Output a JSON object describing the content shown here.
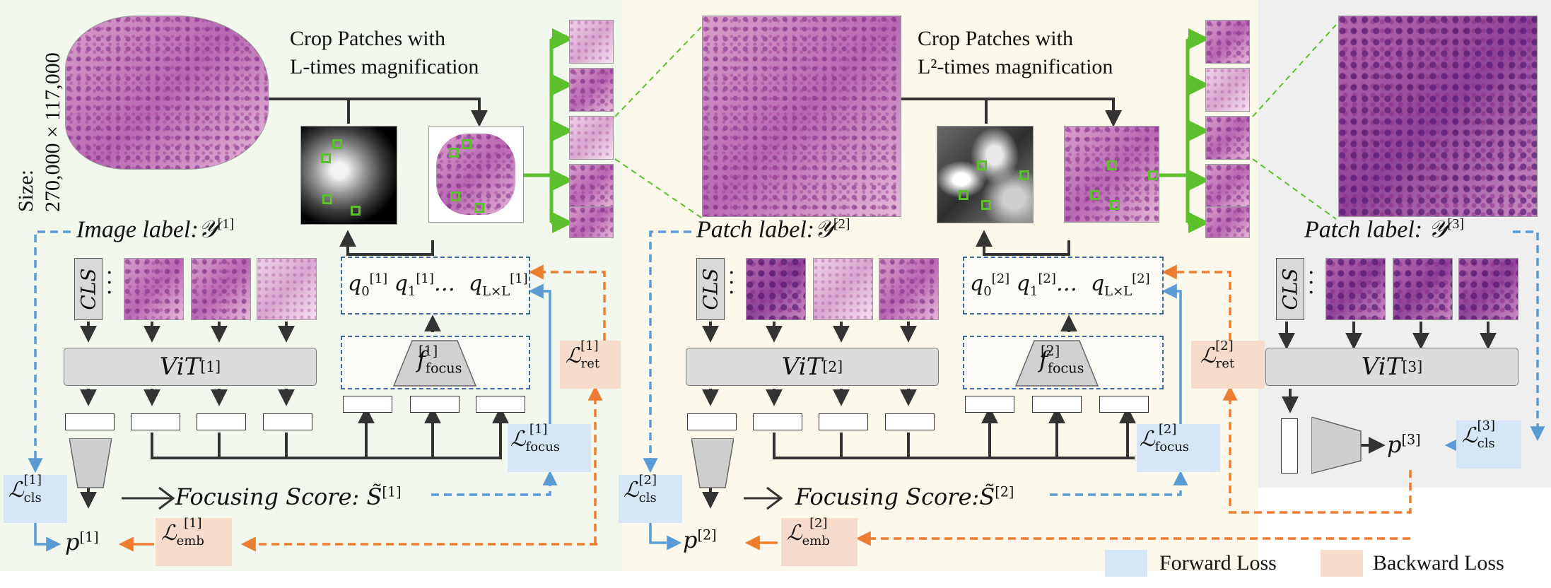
{
  "colors": {
    "forward_loss_bg": "#d6e6f6",
    "backward_loss_bg": "#f7dccb",
    "forward_arrow": "#5b9bd5",
    "backward_arrow": "#ed7d31",
    "green_arrow": "#5cc02c",
    "stage1_bg": "#f3f8ee",
    "stage2_bg": "#fdf8ec",
    "stage3_bg": "#efefef"
  },
  "stage1": {
    "size_label": "Size:",
    "size_value": "270,000 × 117,000",
    "crop_line1": "Crop Patches with",
    "crop_line2": "L-times magnification",
    "image_label": "Image label:𝒴",
    "image_label_sup": "[1]",
    "vit": "ViT",
    "vit_sup": "[1]",
    "cls": "CLS",
    "q_tokens": "q₀⁽¹⁾ q₁⁽¹⁾… q_{L×L}⁽¹⁾",
    "focus_fn": "f",
    "focus_fn_sub": "focus",
    "focus_fn_sup": "[1]",
    "focusing_score": "Focusing Score: S̃",
    "focusing_score_sup": "[1]",
    "loss_cls": "ℒ",
    "loss_cls_sub": "cls",
    "loss_cls_sup": "[1]",
    "loss_focus_sub": "focus",
    "loss_focus_sup": "[1]",
    "loss_ret_sub": "ret",
    "loss_ret_sup": "[1]",
    "loss_emb_sub": "emb",
    "loss_emb_sup": "[1]",
    "p": "p",
    "p_sup": "[1]"
  },
  "stage2": {
    "crop_line1": "Crop Patches with",
    "crop_line2": "L²-times magnification",
    "patch_label": "Patch label:𝒴",
    "patch_label_sup": "[2]",
    "vit": "ViT",
    "vit_sup": "[2]",
    "cls": "CLS",
    "focus_fn_sup": "[2]",
    "focusing_score": "Focusing Score:S̃",
    "focusing_score_sup": "[2]",
    "loss_cls_sup": "[2]",
    "loss_focus_sup": "[2]",
    "loss_ret_sup": "[2]",
    "loss_emb_sup": "[2]",
    "p_sup": "[2]"
  },
  "stage3": {
    "patch_label": "Patch label: 𝒴",
    "patch_label_sup": "[3]",
    "vit": "ViT",
    "vit_sup": "[3]",
    "cls": "CLS",
    "loss_cls_sup": "[3]",
    "p_sup": "[3]"
  },
  "legend": {
    "forward": "Forward Loss",
    "backward": "Backward Loss"
  }
}
